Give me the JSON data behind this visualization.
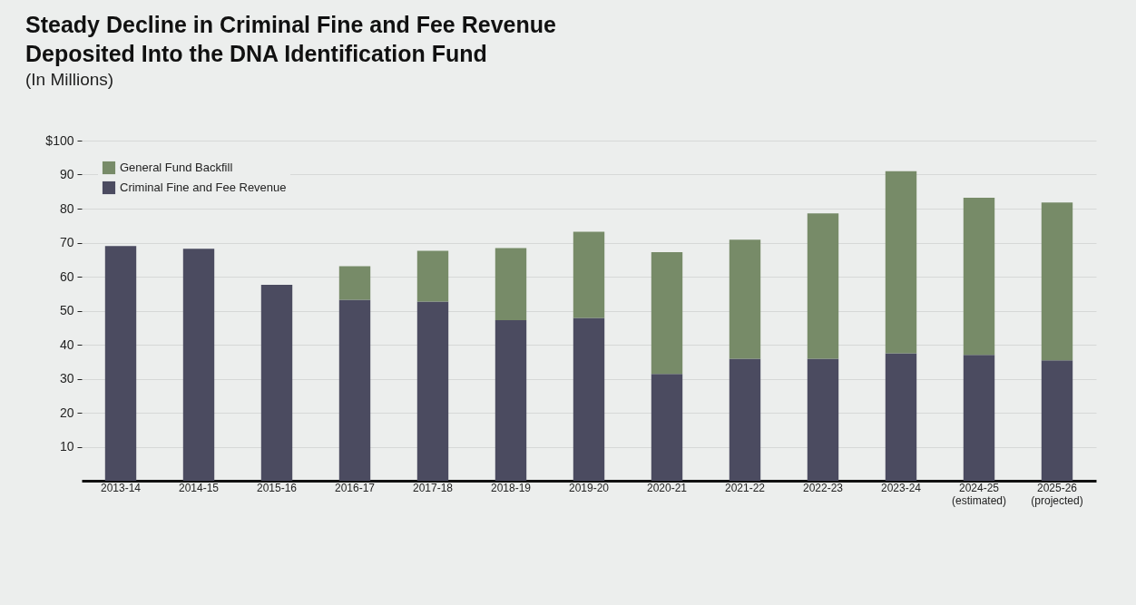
{
  "chart_data": {
    "type": "bar",
    "title": "Steady Decline in Criminal Fine and Fee Revenue\nDeposited Into the DNA Identification Fund",
    "subtitle": "(In Millions)",
    "categories": [
      "2013-14",
      "2014-15",
      "2015-16",
      "2016-17",
      "2017-18",
      "2018-19",
      "2019-20",
      "2020-21",
      "2021-22",
      "2022-23",
      "2023-24",
      "2024-25\n(estimated)",
      "2025-26\n(projected)"
    ],
    "series": [
      {
        "name": "Criminal Fine and Fee Revenue",
        "color": "#4b4b60",
        "values": [
          69.0,
          68.2,
          57.6,
          53.2,
          52.7,
          47.2,
          47.9,
          31.4,
          35.9,
          35.9,
          37.5,
          37.0,
          35.4
        ]
      },
      {
        "name": "General Fund Backfill",
        "color": "#778b68",
        "values": [
          null,
          null,
          null,
          9.9,
          14.9,
          21.2,
          25.3,
          35.8,
          35.0,
          42.7,
          53.5,
          46.2,
          46.4
        ]
      }
    ],
    "stacked": true,
    "ylim": [
      0,
      100
    ],
    "yticks": [
      10,
      20,
      30,
      40,
      50,
      60,
      70,
      80,
      90,
      {
        "value": 100,
        "label": "$100"
      }
    ],
    "grid": "y",
    "legend": "top left"
  }
}
